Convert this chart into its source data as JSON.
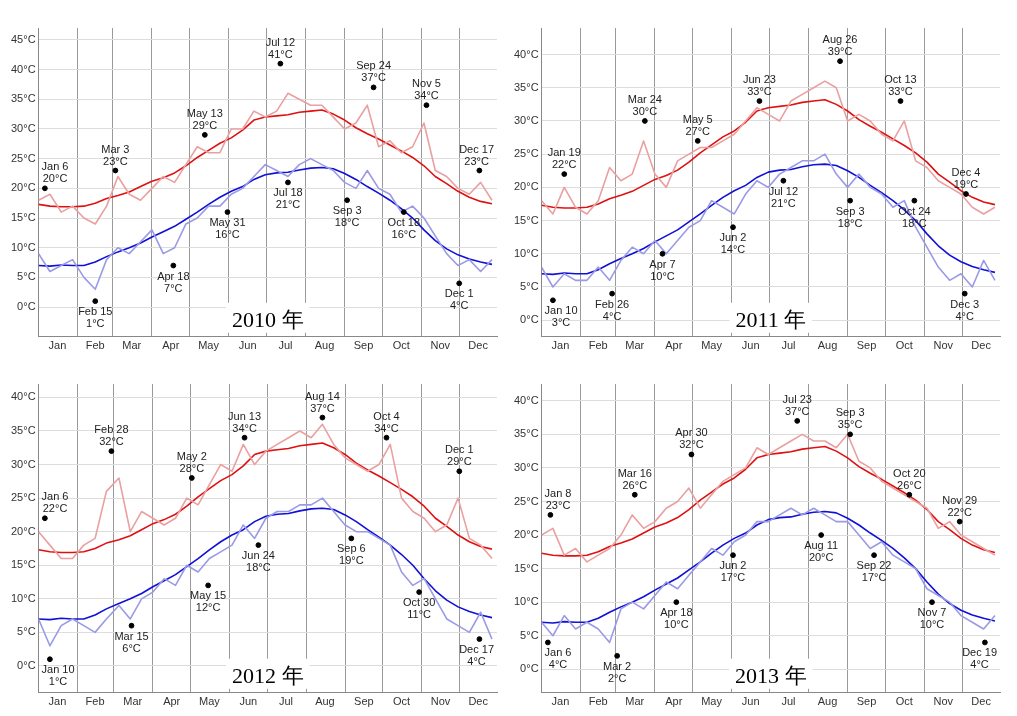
{
  "chart_data": [
    {
      "type": "line",
      "title": "2010 年",
      "grid": true,
      "legend": false,
      "x": [
        "2010-01-01",
        "2010-01-10",
        "2010-01-19",
        "2010-01-28",
        "2010-02-06",
        "2010-02-15",
        "2010-02-24",
        "2010-03-05",
        "2010-03-14",
        "2010-03-23",
        "2010-04-01",
        "2010-04-10",
        "2010-04-19",
        "2010-04-28",
        "2010-05-07",
        "2010-05-16",
        "2010-05-25",
        "2010-06-03",
        "2010-06-12",
        "2010-06-21",
        "2010-06-30",
        "2010-07-09",
        "2010-07-18",
        "2010-07-27",
        "2010-08-05",
        "2010-08-14",
        "2010-08-23",
        "2010-09-01",
        "2010-09-10",
        "2010-09-19",
        "2010-09-28",
        "2010-10-07",
        "2010-10-16",
        "2010-10-25",
        "2010-11-03",
        "2010-11-12",
        "2010-11-21",
        "2010-11-30",
        "2010-12-09",
        "2010-12-18",
        "2010-12-27"
      ],
      "xlim": [
        "2010-01-01",
        "2010-12-31"
      ],
      "xticks": [
        {
          "value": "2010-01-16",
          "label": "Jan"
        },
        {
          "value": "2010-02-01",
          "label": null
        },
        {
          "value": "2010-02-15",
          "label": "Feb"
        },
        {
          "value": "2010-03-01",
          "label": null
        },
        {
          "value": "2010-03-16",
          "label": "Mar"
        },
        {
          "value": "2010-04-01",
          "label": null
        },
        {
          "value": "2010-04-16",
          "label": "Apr"
        },
        {
          "value": "2010-05-01",
          "label": null
        },
        {
          "value": "2010-05-16",
          "label": "May"
        },
        {
          "value": "2010-06-01",
          "label": null
        },
        {
          "value": "2010-06-16",
          "label": "Jun"
        },
        {
          "value": "2010-07-01",
          "label": null
        },
        {
          "value": "2010-07-16",
          "label": "Jul"
        },
        {
          "value": "2010-08-01",
          "label": null
        },
        {
          "value": "2010-08-16",
          "label": "Aug"
        },
        {
          "value": "2010-09-01",
          "label": null
        },
        {
          "value": "2010-09-16",
          "label": "Sep"
        },
        {
          "value": "2010-10-01",
          "label": null
        },
        {
          "value": "2010-10-16",
          "label": "Oct"
        },
        {
          "value": "2010-11-01",
          "label": null
        },
        {
          "value": "2010-11-16",
          "label": "Nov"
        },
        {
          "value": "2010-12-01",
          "label": null
        },
        {
          "value": "2010-12-16",
          "label": "Dec"
        }
      ],
      "ylim": [
        -5,
        47
      ],
      "yticks": [
        {
          "value": 0,
          "label": "0°C"
        },
        {
          "value": 5,
          "label": "5°C"
        },
        {
          "value": 10,
          "label": "10°C"
        },
        {
          "value": 15,
          "label": "15°C"
        },
        {
          "value": 20,
          "label": "20°C"
        },
        {
          "value": 25,
          "label": "25°C"
        },
        {
          "value": 30,
          "label": "30°C"
        },
        {
          "value": 35,
          "label": "35°C"
        },
        {
          "value": 40,
          "label": "40°C"
        },
        {
          "value": 45,
          "label": "45°C"
        }
      ],
      "series": [
        {
          "color": "#eaa0a0",
          "values": [
            18,
            19,
            16,
            17,
            15,
            14,
            17,
            22,
            19,
            18,
            20,
            22,
            21,
            24,
            27,
            26,
            26,
            30,
            30,
            33,
            32,
            33,
            36,
            35,
            34,
            34,
            32,
            30,
            31,
            34,
            27,
            28,
            26,
            27,
            31,
            23,
            22,
            20,
            19,
            21,
            18
          ]
        },
        {
          "color": "#9a9ae6",
          "values": [
            9,
            6,
            7,
            8,
            5,
            3,
            8,
            10,
            9,
            11,
            13,
            9,
            10,
            14,
            15,
            17,
            17,
            19,
            20,
            22,
            24,
            23,
            22,
            24,
            25,
            24,
            23,
            21,
            20,
            23,
            20,
            19,
            16,
            17,
            15,
            12,
            9,
            7,
            8,
            6,
            8
          ]
        },
        {
          "color": "#e01010",
          "values": [
            17.3,
            17,
            16.9,
            16.9,
            17,
            17.5,
            18.3,
            18.8,
            19.4,
            20.3,
            21.2,
            21.8,
            22.6,
            23.8,
            25.2,
            26.4,
            27.6,
            28.5,
            29.8,
            31.5,
            32,
            32.2,
            32.4,
            32.8,
            33,
            33.2,
            32.5,
            31.5,
            30.2,
            29.2,
            28.3,
            27.3,
            26.3,
            25.2,
            23.8,
            22,
            20.8,
            19.5,
            18.5,
            17.8,
            17.4
          ]
        },
        {
          "color": "#1010d8",
          "values": [
            7,
            6.9,
            7.1,
            7,
            7,
            7.6,
            8.5,
            9.3,
            10,
            10.8,
            11.8,
            12.7,
            13.6,
            14.8,
            16,
            17.3,
            18.5,
            19.5,
            20.3,
            21.5,
            22.3,
            22.6,
            22.7,
            23.1,
            23.4,
            23.5,
            23.3,
            22.5,
            21.5,
            20.3,
            19.2,
            18,
            16.6,
            15,
            13,
            11.2,
            9.8,
            8.8,
            8.1,
            7.6,
            7.2
          ]
        },
        {
          "type": "scatter",
          "color": "#000000",
          "x": [
            "2010-01-06",
            "2010-03-03",
            "2010-05-13",
            "2010-07-12",
            "2010-09-24",
            "2010-11-05",
            "2010-12-17",
            "2010-02-15",
            "2010-04-18",
            "2010-05-31",
            "2010-07-18",
            "2010-09-03",
            "2010-10-18",
            "2010-12-01"
          ],
          "values": [
            20,
            23,
            29,
            41,
            37,
            34,
            23,
            1,
            7,
            16,
            21,
            18,
            16,
            4
          ]
        }
      ],
      "annotations": [
        {
          "text": "Jan 6\n20°C",
          "x": "2010-01-06",
          "y": 20
        },
        {
          "text": "Mar 3\n23°C",
          "x": "2010-03-03",
          "y": 23
        },
        {
          "text": "May 13\n29°C",
          "x": "2010-05-13",
          "y": 29
        },
        {
          "text": "Jul 12\n41°C",
          "x": "2010-07-12",
          "y": 41
        },
        {
          "text": "Sep 24\n37°C",
          "x": "2010-09-24",
          "y": 37
        },
        {
          "text": "Nov 5\n34°C",
          "x": "2010-11-05",
          "y": 34
        },
        {
          "text": "Dec 17\n23°C",
          "x": "2010-12-17",
          "y": 23
        },
        {
          "text": "Feb 15\n1°C",
          "x": "2010-02-15",
          "y": 1
        },
        {
          "text": "Apr 18\n7°C",
          "x": "2010-04-18",
          "y": 7
        },
        {
          "text": "May 31\n16°C",
          "x": "2010-05-31",
          "y": 16
        },
        {
          "text": "Jul 18\n21°C",
          "x": "2010-07-18",
          "y": 21
        },
        {
          "text": "Sep 3\n18°C",
          "x": "2010-09-03",
          "y": 18
        },
        {
          "text": "Oct 18\n16°C",
          "x": "2010-10-18",
          "y": 16
        },
        {
          "text": "Dec 1\n4°C",
          "x": "2010-12-01",
          "y": 4
        }
      ]
    },
    {
      "type": "line",
      "title": "2011 年",
      "grid": true,
      "legend": false,
      "x": [
        "2011-01-01",
        "2011-01-10",
        "2011-01-19",
        "2011-01-28",
        "2011-02-06",
        "2011-02-15",
        "2011-02-24",
        "2011-03-05",
        "2011-03-14",
        "2011-03-23",
        "2011-04-01",
        "2011-04-10",
        "2011-04-19",
        "2011-04-28",
        "2011-05-07",
        "2011-05-16",
        "2011-05-25",
        "2011-06-03",
        "2011-06-12",
        "2011-06-21",
        "2011-06-30",
        "2011-07-09",
        "2011-07-18",
        "2011-07-27",
        "2011-08-05",
        "2011-08-14",
        "2011-08-23",
        "2011-09-01",
        "2011-09-10",
        "2011-09-19",
        "2011-09-28",
        "2011-10-07",
        "2011-10-16",
        "2011-10-25",
        "2011-11-03",
        "2011-11-12",
        "2011-11-21",
        "2011-11-30",
        "2011-12-09",
        "2011-12-18",
        "2011-12-27"
      ],
      "xlim": [
        "2011-01-01",
        "2011-12-31"
      ],
      "xticks": [
        {
          "value": "2011-01-16",
          "label": "Jan"
        },
        {
          "value": "2011-02-01",
          "label": null
        },
        {
          "value": "2011-02-15",
          "label": "Feb"
        },
        {
          "value": "2011-03-01",
          "label": null
        },
        {
          "value": "2011-03-16",
          "label": "Mar"
        },
        {
          "value": "2011-04-01",
          "label": null
        },
        {
          "value": "2011-04-16",
          "label": "Apr"
        },
        {
          "value": "2011-05-01",
          "label": null
        },
        {
          "value": "2011-05-16",
          "label": "May"
        },
        {
          "value": "2011-06-01",
          "label": null
        },
        {
          "value": "2011-06-16",
          "label": "Jun"
        },
        {
          "value": "2011-07-01",
          "label": null
        },
        {
          "value": "2011-07-16",
          "label": "Jul"
        },
        {
          "value": "2011-08-01",
          "label": null
        },
        {
          "value": "2011-08-16",
          "label": "Aug"
        },
        {
          "value": "2011-09-01",
          "label": null
        },
        {
          "value": "2011-09-16",
          "label": "Sep"
        },
        {
          "value": "2011-10-01",
          "label": null
        },
        {
          "value": "2011-10-16",
          "label": "Oct"
        },
        {
          "value": "2011-11-01",
          "label": null
        },
        {
          "value": "2011-11-16",
          "label": "Nov"
        },
        {
          "value": "2011-12-01",
          "label": null
        },
        {
          "value": "2011-12-16",
          "label": "Dec"
        }
      ],
      "ylim": [
        -2.5,
        44
      ],
      "yticks": [
        {
          "value": 0,
          "label": "0°C"
        },
        {
          "value": 5,
          "label": "5°C"
        },
        {
          "value": 10,
          "label": "10°C"
        },
        {
          "value": 15,
          "label": "15°C"
        },
        {
          "value": 20,
          "label": "20°C"
        },
        {
          "value": 25,
          "label": "25°C"
        },
        {
          "value": 30,
          "label": "30°C"
        },
        {
          "value": 35,
          "label": "35°C"
        },
        {
          "value": 40,
          "label": "40°C"
        }
      ],
      "series": [
        {
          "color": "#eaa0a0",
          "values": [
            18,
            16,
            20,
            17,
            16,
            18,
            23,
            21,
            22,
            27,
            22,
            20,
            24,
            25,
            26,
            26,
            27,
            28,
            30,
            32,
            31,
            30,
            33,
            34,
            35,
            36,
            35,
            30,
            31,
            30,
            28,
            27,
            30,
            24,
            23,
            21,
            20,
            19,
            17,
            16,
            17
          ]
        },
        {
          "color": "#9a9ae6",
          "values": [
            8,
            5,
            7,
            6,
            6,
            8,
            6,
            9,
            11,
            10,
            12,
            10,
            12,
            14,
            15,
            18,
            17,
            16,
            19,
            21,
            20,
            22,
            23,
            24,
            24,
            25,
            22,
            20,
            22,
            20,
            19,
            17,
            18,
            14,
            11,
            8,
            6,
            7,
            5,
            9,
            6
          ]
        },
        {
          "color": "#e01010",
          "values": [
            17.3,
            17,
            16.9,
            16.9,
            17,
            17.5,
            18.3,
            18.8,
            19.4,
            20.3,
            21.2,
            21.8,
            22.6,
            23.8,
            25.2,
            26.4,
            27.6,
            28.5,
            29.8,
            31.5,
            32,
            32.2,
            32.4,
            32.8,
            33,
            33.2,
            32.5,
            31.5,
            30.2,
            29.2,
            28.3,
            27.3,
            26.3,
            25.2,
            23.8,
            22,
            20.8,
            19.5,
            18.5,
            17.8,
            17.4
          ]
        },
        {
          "color": "#1010d8",
          "values": [
            7,
            6.9,
            7.1,
            7,
            7,
            7.6,
            8.5,
            9.3,
            10,
            10.8,
            11.8,
            12.7,
            13.6,
            14.8,
            16,
            17.3,
            18.5,
            19.5,
            20.3,
            21.5,
            22.3,
            22.6,
            22.7,
            23.1,
            23.4,
            23.5,
            23.3,
            22.5,
            21.5,
            20.3,
            19.2,
            18,
            16.6,
            15,
            13,
            11.2,
            9.8,
            8.8,
            8.1,
            7.6,
            7.2
          ]
        },
        {
          "type": "scatter",
          "color": "#000000",
          "x": [
            "2011-01-19",
            "2011-03-24",
            "2011-05-05",
            "2011-06-23",
            "2011-08-26",
            "2011-10-13",
            "2011-12-04",
            "2011-01-10",
            "2011-02-26",
            "2011-04-07",
            "2011-06-02",
            "2011-07-12",
            "2011-09-03",
            "2011-10-24",
            "2011-12-03"
          ],
          "values": [
            22,
            30,
            27,
            33,
            39,
            33,
            19,
            3,
            4,
            10,
            14,
            21,
            18,
            18,
            4
          ]
        }
      ],
      "annotations": [
        {
          "text": "Jan 19\n22°C",
          "x": "2011-01-19",
          "y": 22
        },
        {
          "text": "Mar 24\n30°C",
          "x": "2011-03-24",
          "y": 30
        },
        {
          "text": "May 5\n27°C",
          "x": "2011-05-05",
          "y": 27
        },
        {
          "text": "Jun 23\n33°C",
          "x": "2011-06-23",
          "y": 33
        },
        {
          "text": "Aug 26\n39°C",
          "x": "2011-08-26",
          "y": 39
        },
        {
          "text": "Oct 13\n33°C",
          "x": "2011-10-13",
          "y": 33
        },
        {
          "text": "Dec 4\n19°C",
          "x": "2011-12-04",
          "y": 19
        },
        {
          "text": "Jan 10\n3°C",
          "x": "2011-01-10",
          "y": 3
        },
        {
          "text": "Feb 26\n4°C",
          "x": "2011-02-26",
          "y": 4
        },
        {
          "text": "Apr 7\n10°C",
          "x": "2011-04-07",
          "y": 10
        },
        {
          "text": "Jun 2\n14°C",
          "x": "2011-06-02",
          "y": 14
        },
        {
          "text": "Jul 12\n21°C",
          "x": "2011-07-12",
          "y": 21
        },
        {
          "text": "Sep 3\n18°C",
          "x": "2011-09-03",
          "y": 18
        },
        {
          "text": "Oct 24\n18°C",
          "x": "2011-10-24",
          "y": 18
        },
        {
          "text": "Dec 3\n4°C",
          "x": "2011-12-03",
          "y": 4
        }
      ]
    },
    {
      "type": "line",
      "title": "2012 年",
      "grid": true,
      "legend": false,
      "x": [
        "2012-01-01",
        "2012-01-10",
        "2012-01-19",
        "2012-01-28",
        "2012-02-06",
        "2012-02-15",
        "2012-02-24",
        "2012-03-05",
        "2012-03-14",
        "2012-03-23",
        "2012-04-01",
        "2012-04-10",
        "2012-04-19",
        "2012-04-28",
        "2012-05-07",
        "2012-05-16",
        "2012-05-25",
        "2012-06-03",
        "2012-06-12",
        "2012-06-21",
        "2012-06-30",
        "2012-07-09",
        "2012-07-18",
        "2012-07-27",
        "2012-08-05",
        "2012-08-14",
        "2012-08-23",
        "2012-09-01",
        "2012-09-10",
        "2012-09-19",
        "2012-09-28",
        "2012-10-07",
        "2012-10-16",
        "2012-10-25",
        "2012-11-03",
        "2012-11-12",
        "2012-11-21",
        "2012-11-30",
        "2012-12-09",
        "2012-12-18",
        "2012-12-27"
      ],
      "xlim": [
        "2012-01-01",
        "2012-12-31"
      ],
      "xticks": [
        {
          "value": "2012-01-16",
          "label": "Jan"
        },
        {
          "value": "2012-02-01",
          "label": null
        },
        {
          "value": "2012-02-15",
          "label": "Feb"
        },
        {
          "value": "2012-03-01",
          "label": null
        },
        {
          "value": "2012-03-16",
          "label": "Mar"
        },
        {
          "value": "2012-04-01",
          "label": null
        },
        {
          "value": "2012-04-16",
          "label": "Apr"
        },
        {
          "value": "2012-05-01",
          "label": null
        },
        {
          "value": "2012-05-16",
          "label": "May"
        },
        {
          "value": "2012-06-01",
          "label": null
        },
        {
          "value": "2012-06-16",
          "label": "Jun"
        },
        {
          "value": "2012-07-01",
          "label": null
        },
        {
          "value": "2012-07-16",
          "label": "Jul"
        },
        {
          "value": "2012-08-01",
          "label": null
        },
        {
          "value": "2012-08-16",
          "label": "Aug"
        },
        {
          "value": "2012-09-01",
          "label": null
        },
        {
          "value": "2012-09-16",
          "label": "Sep"
        },
        {
          "value": "2012-10-01",
          "label": null
        },
        {
          "value": "2012-10-16",
          "label": "Oct"
        },
        {
          "value": "2012-11-01",
          "label": null
        },
        {
          "value": "2012-11-16",
          "label": "Nov"
        },
        {
          "value": "2012-12-01",
          "label": null
        },
        {
          "value": "2012-12-16",
          "label": "Dec"
        }
      ],
      "ylim": [
        -4,
        42
      ],
      "yticks": [
        {
          "value": 0,
          "label": "0°C"
        },
        {
          "value": 5,
          "label": "5°C"
        },
        {
          "value": 10,
          "label": "10°C"
        },
        {
          "value": 15,
          "label": "15°C"
        },
        {
          "value": 20,
          "label": "20°C"
        },
        {
          "value": 25,
          "label": "25°C"
        },
        {
          "value": 30,
          "label": "30°C"
        },
        {
          "value": 35,
          "label": "35°C"
        },
        {
          "value": 40,
          "label": "40°C"
        }
      ],
      "series": [
        {
          "color": "#eaa0a0",
          "values": [
            20,
            18,
            16,
            16,
            18,
            19,
            26,
            28,
            20,
            23,
            22,
            21,
            22,
            25,
            24,
            27,
            30,
            29,
            33,
            30,
            32,
            33,
            34,
            35,
            34,
            36,
            33,
            31,
            30,
            29,
            30,
            33,
            25,
            23,
            22,
            20,
            21,
            25,
            19,
            18,
            16
          ]
        },
        {
          "color": "#9a9ae6",
          "values": [
            7,
            3,
            6,
            7,
            6,
            5,
            7,
            9,
            7,
            10,
            11,
            13,
            12,
            15,
            14,
            16,
            17,
            18,
            21,
            19,
            22,
            23,
            23,
            24,
            24,
            25,
            23,
            21,
            20,
            20,
            19,
            18,
            14,
            12,
            13,
            10,
            7,
            6,
            5,
            8,
            4
          ]
        },
        {
          "color": "#e01010",
          "values": [
            17.3,
            17,
            16.9,
            16.9,
            17,
            17.5,
            18.3,
            18.8,
            19.4,
            20.3,
            21.2,
            21.8,
            22.6,
            23.8,
            25.2,
            26.4,
            27.6,
            28.5,
            29.8,
            31.5,
            32,
            32.2,
            32.4,
            32.8,
            33,
            33.2,
            32.5,
            31.5,
            30.2,
            29.2,
            28.3,
            27.3,
            26.3,
            25.2,
            23.8,
            22,
            20.8,
            19.5,
            18.5,
            17.8,
            17.4
          ]
        },
        {
          "color": "#1010d8",
          "values": [
            7,
            6.9,
            7.1,
            7,
            7,
            7.6,
            8.5,
            9.3,
            10,
            10.8,
            11.8,
            12.7,
            13.6,
            14.8,
            16,
            17.3,
            18.5,
            19.5,
            20.3,
            21.5,
            22.3,
            22.6,
            22.7,
            23.1,
            23.4,
            23.5,
            23.3,
            22.5,
            21.5,
            20.3,
            19.2,
            18,
            16.6,
            15,
            13,
            11.2,
            9.8,
            8.8,
            8.1,
            7.6,
            7.2
          ]
        },
        {
          "type": "scatter",
          "color": "#000000",
          "x": [
            "2012-01-06",
            "2012-02-28",
            "2012-05-02",
            "2012-06-13",
            "2012-08-14",
            "2012-10-04",
            "2012-12-01",
            "2012-01-10",
            "2012-03-15",
            "2012-05-15",
            "2012-06-24",
            "2012-09-06",
            "2012-10-30",
            "2012-12-17"
          ],
          "values": [
            22,
            32,
            28,
            34,
            37,
            34,
            29,
            1,
            6,
            12,
            18,
            19,
            11,
            4
          ]
        }
      ],
      "annotations": [
        {
          "text": "Jan 6\n22°C",
          "x": "2012-01-06",
          "y": 22
        },
        {
          "text": "Feb 28\n32°C",
          "x": "2012-02-28",
          "y": 32
        },
        {
          "text": "May 2\n28°C",
          "x": "2012-05-02",
          "y": 28
        },
        {
          "text": "Jun 13\n34°C",
          "x": "2012-06-13",
          "y": 34
        },
        {
          "text": "Aug 14\n37°C",
          "x": "2012-08-14",
          "y": 37
        },
        {
          "text": "Oct 4\n34°C",
          "x": "2012-10-04",
          "y": 34
        },
        {
          "text": "Dec 1\n29°C",
          "x": "2012-12-01",
          "y": 29
        },
        {
          "text": "Jan 10\n1°C",
          "x": "2012-01-10",
          "y": 1
        },
        {
          "text": "Mar 15\n6°C",
          "x": "2012-03-15",
          "y": 6
        },
        {
          "text": "May 15\n12°C",
          "x": "2012-05-15",
          "y": 12
        },
        {
          "text": "Jun 24\n18°C",
          "x": "2012-06-24",
          "y": 18
        },
        {
          "text": "Sep 6\n19°C",
          "x": "2012-09-06",
          "y": 19
        },
        {
          "text": "Oct 30\n11°C",
          "x": "2012-10-30",
          "y": 11
        },
        {
          "text": "Dec 17\n4°C",
          "x": "2012-12-17",
          "y": 4
        }
      ]
    },
    {
      "type": "line",
      "title": "2013 年",
      "grid": true,
      "legend": false,
      "x": [
        "2013-01-01",
        "2013-01-10",
        "2013-01-19",
        "2013-01-28",
        "2013-02-06",
        "2013-02-15",
        "2013-02-24",
        "2013-03-05",
        "2013-03-14",
        "2013-03-23",
        "2013-04-01",
        "2013-04-10",
        "2013-04-19",
        "2013-04-28",
        "2013-05-07",
        "2013-05-16",
        "2013-05-25",
        "2013-06-03",
        "2013-06-12",
        "2013-06-21",
        "2013-06-30",
        "2013-07-09",
        "2013-07-18",
        "2013-07-27",
        "2013-08-05",
        "2013-08-14",
        "2013-08-23",
        "2013-09-01",
        "2013-09-10",
        "2013-09-19",
        "2013-09-28",
        "2013-10-07",
        "2013-10-16",
        "2013-10-25",
        "2013-11-03",
        "2013-11-12",
        "2013-11-21",
        "2013-11-30",
        "2013-12-09",
        "2013-12-18",
        "2013-12-27"
      ],
      "xlim": [
        "2013-01-01",
        "2013-12-31"
      ],
      "xticks": [
        {
          "value": "2013-01-16",
          "label": "Jan"
        },
        {
          "value": "2013-02-01",
          "label": null
        },
        {
          "value": "2013-02-15",
          "label": "Feb"
        },
        {
          "value": "2013-03-01",
          "label": null
        },
        {
          "value": "2013-03-16",
          "label": "Mar"
        },
        {
          "value": "2013-04-01",
          "label": null
        },
        {
          "value": "2013-04-16",
          "label": "Apr"
        },
        {
          "value": "2013-05-01",
          "label": null
        },
        {
          "value": "2013-05-16",
          "label": "May"
        },
        {
          "value": "2013-06-01",
          "label": null
        },
        {
          "value": "2013-06-16",
          "label": "Jun"
        },
        {
          "value": "2013-07-01",
          "label": null
        },
        {
          "value": "2013-07-16",
          "label": "Jul"
        },
        {
          "value": "2013-08-01",
          "label": null
        },
        {
          "value": "2013-08-16",
          "label": "Aug"
        },
        {
          "value": "2013-09-01",
          "label": null
        },
        {
          "value": "2013-09-16",
          "label": "Sep"
        },
        {
          "value": "2013-10-01",
          "label": null
        },
        {
          "value": "2013-10-16",
          "label": "Oct"
        },
        {
          "value": "2013-11-01",
          "label": null
        },
        {
          "value": "2013-11-16",
          "label": "Nov"
        },
        {
          "value": "2013-12-01",
          "label": null
        },
        {
          "value": "2013-12-16",
          "label": "Dec"
        }
      ],
      "ylim": [
        -3.5,
        42.5
      ],
      "yticks": [
        {
          "value": 0,
          "label": "0°C"
        },
        {
          "value": 5,
          "label": "5°C"
        },
        {
          "value": 10,
          "label": "10°C"
        },
        {
          "value": 15,
          "label": "15°C"
        },
        {
          "value": 20,
          "label": "20°C"
        },
        {
          "value": 25,
          "label": "25°C"
        },
        {
          "value": 30,
          "label": "30°C"
        },
        {
          "value": 35,
          "label": "35°C"
        },
        {
          "value": 40,
          "label": "40°C"
        }
      ],
      "series": [
        {
          "color": "#eaa0a0",
          "values": [
            20,
            21,
            17,
            18,
            16,
            17,
            18,
            20,
            23,
            21,
            22,
            24,
            25,
            27,
            24,
            26,
            28,
            29,
            30,
            33,
            32,
            33,
            34,
            35,
            34,
            34,
            33,
            35,
            31,
            30,
            28,
            27,
            26,
            25,
            24,
            21,
            22,
            20,
            19,
            18,
            17
          ]
        },
        {
          "color": "#9a9ae6",
          "values": [
            7,
            5,
            8,
            6,
            7,
            6,
            4,
            9,
            10,
            9,
            11,
            13,
            12,
            14,
            16,
            18,
            17,
            19,
            20,
            22,
            22,
            23,
            24,
            23,
            24,
            23,
            22,
            22,
            20,
            18,
            19,
            17,
            16,
            15,
            12,
            11,
            10,
            8,
            7,
            6,
            8
          ]
        },
        {
          "color": "#e01010",
          "values": [
            17.3,
            17,
            16.9,
            16.9,
            17,
            17.5,
            18.3,
            18.8,
            19.4,
            20.3,
            21.2,
            21.8,
            22.6,
            23.8,
            25.2,
            26.4,
            27.6,
            28.5,
            29.8,
            31.5,
            32,
            32.2,
            32.4,
            32.8,
            33,
            33.2,
            32.5,
            31.5,
            30.2,
            29.2,
            28.3,
            27.3,
            26.3,
            25.2,
            23.8,
            22,
            20.8,
            19.5,
            18.5,
            17.8,
            17.4
          ]
        },
        {
          "color": "#1010d8",
          "values": [
            7,
            6.9,
            7.1,
            7,
            7,
            7.6,
            8.5,
            9.3,
            10,
            10.8,
            11.8,
            12.7,
            13.6,
            14.8,
            16,
            17.3,
            18.5,
            19.5,
            20.3,
            21.5,
            22.3,
            22.6,
            22.7,
            23.1,
            23.4,
            23.5,
            23.3,
            22.5,
            21.5,
            20.3,
            19.2,
            18,
            16.6,
            15,
            13,
            11.2,
            9.8,
            8.8,
            8.1,
            7.6,
            7.2
          ]
        },
        {
          "type": "scatter",
          "color": "#000000",
          "x": [
            "2013-01-08",
            "2013-03-16",
            "2013-04-30",
            "2013-07-23",
            "2013-09-03",
            "2013-10-20",
            "2013-11-29",
            "2013-01-06",
            "2013-03-02",
            "2013-04-18",
            "2013-06-02",
            "2013-08-11",
            "2013-09-22",
            "2013-11-07",
            "2013-12-19"
          ],
          "values": [
            23,
            26,
            32,
            37,
            35,
            26,
            22,
            4,
            2,
            10,
            17,
            20,
            17,
            10,
            4
          ]
        }
      ],
      "annotations": [
        {
          "text": "Jan 8\n23°C",
          "x": "2013-01-08",
          "y": 23
        },
        {
          "text": "Mar 16\n26°C",
          "x": "2013-03-16",
          "y": 26
        },
        {
          "text": "Apr 30\n32°C",
          "x": "2013-04-30",
          "y": 32
        },
        {
          "text": "Jul 23\n37°C",
          "x": "2013-07-23",
          "y": 37
        },
        {
          "text": "Sep 3\n35°C",
          "x": "2013-09-03",
          "y": 35
        },
        {
          "text": "Oct 20\n26°C",
          "x": "2013-10-20",
          "y": 26
        },
        {
          "text": "Nov 29\n22°C",
          "x": "2013-11-29",
          "y": 22
        },
        {
          "text": "Jan 6\n4°C",
          "x": "2013-01-06",
          "y": 4
        },
        {
          "text": "Mar 2\n2°C",
          "x": "2013-03-02",
          "y": 2
        },
        {
          "text": "Apr 18\n10°C",
          "x": "2013-04-18",
          "y": 10
        },
        {
          "text": "Jun 2\n17°C",
          "x": "2013-06-02",
          "y": 17
        },
        {
          "text": "Aug 11\n20°C",
          "x": "2013-08-11",
          "y": 20
        },
        {
          "text": "Sep 22\n17°C",
          "x": "2013-09-22",
          "y": 17
        },
        {
          "text": "Nov 7\n10°C",
          "x": "2013-11-07",
          "y": 10
        },
        {
          "text": "Dec 19\n4°C",
          "x": "2013-12-19",
          "y": 4
        }
      ]
    }
  ]
}
